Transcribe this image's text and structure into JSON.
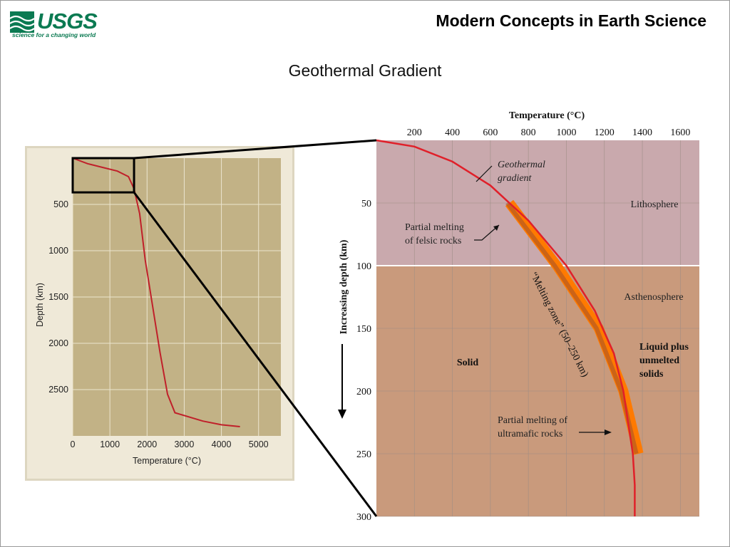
{
  "header": {
    "logo_text": "USGS",
    "logo_tagline": "science for a changing world",
    "slide_title": "Modern Concepts in Earth Science",
    "subtitle": "Geothermal Gradient"
  },
  "colors": {
    "usgs_green": "#0b7a52",
    "small_panel_bg": "#c2b286",
    "lithosphere": "#c9a9ad",
    "asthenosphere": "#c99a7c",
    "gradient_curve": "#e0202a",
    "melting_zone": "#ff7a00"
  },
  "chart_data": [
    {
      "type": "line",
      "xlabel": "Temperature (°C)",
      "ylabel": "Depth (km)",
      "xlim": [
        0,
        5600
      ],
      "ylim": [
        0,
        3000
      ],
      "y_inverted": true,
      "xticks": [
        "0",
        "1000",
        "2000",
        "3000",
        "4000",
        "5000"
      ],
      "yticks": [
        "500",
        "1000",
        "1500",
        "2000",
        "2500"
      ],
      "grid": true,
      "series": [
        {
          "points": [
            [
              0,
              0
            ],
            [
              400,
              60
            ],
            [
              800,
              100
            ],
            [
              1200,
              140
            ],
            [
              1500,
              200
            ],
            [
              1650,
              330
            ],
            [
              1800,
              600
            ],
            [
              1950,
              1100
            ],
            [
              2150,
              1600
            ],
            [
              2350,
              2100
            ],
            [
              2550,
              2550
            ],
            [
              2750,
              2750
            ],
            [
              3500,
              2840
            ],
            [
              4000,
              2880
            ],
            [
              4500,
              2900
            ]
          ]
        }
      ],
      "inset_box_label": "",
      "inset_box_extent": {
        "x": [
          0,
          1650
        ],
        "y": [
          0,
          370
        ]
      }
    },
    {
      "type": "line",
      "xlabel": "Temperature (°C)",
      "ylabel": "Increasing depth (km)",
      "xlim": [
        0,
        1700
      ],
      "ylim": [
        0,
        300
      ],
      "y_inverted": true,
      "xticks": [
        "200",
        "400",
        "600",
        "800",
        "1000",
        "1200",
        "1400",
        "1600"
      ],
      "yticks": [
        "50",
        "100",
        "150",
        "200",
        "250",
        "300"
      ],
      "grid": true,
      "regions": [
        {
          "label": "Lithosphere",
          "depth": [
            0,
            100
          ]
        },
        {
          "label": "Asthenosphere",
          "depth": [
            100,
            300
          ]
        }
      ],
      "series": [
        {
          "name": "Geothermal gradient",
          "points": [
            [
              0,
              0
            ],
            [
              200,
              5
            ],
            [
              400,
              17
            ],
            [
              600,
              36
            ],
            [
              800,
              64
            ],
            [
              1000,
              100
            ],
            [
              1150,
              136
            ],
            [
              1250,
              170
            ],
            [
              1300,
              200
            ],
            [
              1350,
              250
            ],
            [
              1360,
              275
            ],
            [
              1360,
              300
            ]
          ]
        }
      ],
      "melting_zone": {
        "label": "“Melting zone” (50–250 km)",
        "depth": [
          50,
          250
        ],
        "points": [
          [
            700,
            50
          ],
          [
            950,
            100
          ],
          [
            1170,
            150
          ],
          [
            1300,
            200
          ],
          [
            1380,
            250
          ]
        ]
      },
      "annotations": {
        "geothermal": "Geothermal gradient",
        "felsic": "Partial melting of felsic rocks",
        "ultramafic": "Partial melting of ultramafic rocks",
        "solid": "Solid",
        "liquid": "Liquid plus unmelted solids"
      }
    }
  ]
}
